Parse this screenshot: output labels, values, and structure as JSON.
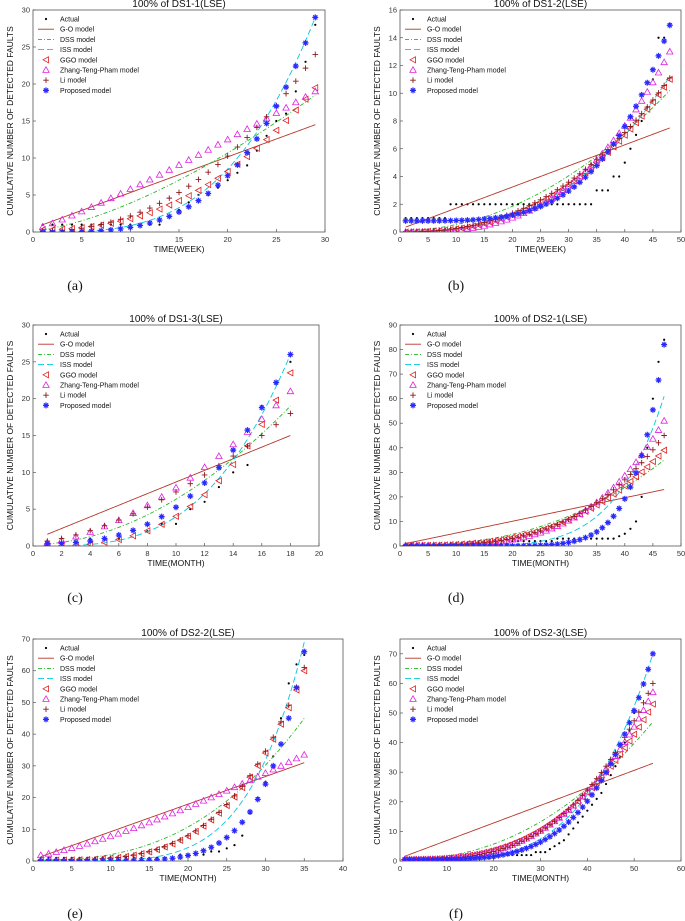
{
  "figure": {
    "colors": {
      "actual": "#000000",
      "go": "#b5372b",
      "dss": "#22b822",
      "iss": "#00c8dc",
      "ggo": "#e02020",
      "ztp": "#e020e0",
      "li": "#8b1a1a",
      "proposed": "#2a2aff"
    },
    "legend_labels": [
      "Actual",
      "G-O model",
      "DSS model",
      "ISS model",
      "GGO model",
      "Zhang-Teng-Pham model",
      "Li model",
      "Proposed model"
    ]
  },
  "chart_data": [
    {
      "type": "line",
      "id": "a",
      "caption": "(a)",
      "title": "100% of DS1-1(LSE)",
      "xlabel": "TIME(WEEK)",
      "ylabel": "CUMULATIVE NUMBER OF DETECTED FAULTS",
      "xlim": [
        0,
        30
      ],
      "ylim": [
        0,
        30
      ],
      "xticks": [
        0,
        5,
        10,
        15,
        20,
        25,
        30
      ],
      "yticks": [
        0,
        5,
        10,
        15,
        20,
        25,
        30
      ],
      "x_end": 29,
      "series": [
        {
          "name": "Actual",
          "kind": "actual",
          "values": [
            1,
            1,
            1,
            1,
            1,
            1,
            1,
            1,
            1,
            1,
            1,
            1,
            1,
            2,
            3,
            4,
            5,
            5,
            6,
            7,
            8,
            9,
            11,
            13,
            15,
            16,
            19,
            23,
            28
          ]
        },
        {
          "name": "G-O model",
          "kind": "go",
          "fn": "lin",
          "a": 0.5,
          "b": 14.5
        },
        {
          "name": "DSS model",
          "kind": "dss",
          "fn": "pow",
          "a": 0.2,
          "b": 18.5,
          "p": 1.5
        },
        {
          "name": "ISS model",
          "kind": "iss",
          "fn": "pow",
          "a": 0.0,
          "b": 29.0,
          "p": 3.3
        },
        {
          "name": "GGO model",
          "kind": "ggo",
          "fn": "pow",
          "a": 0.3,
          "b": 19.5,
          "p": 2.4
        },
        {
          "name": "Zhang-Teng-Pham model",
          "kind": "ztp",
          "fn": "pow",
          "a": 0.3,
          "b": 19.0,
          "p": 1.15
        },
        {
          "name": "Li model",
          "kind": "li",
          "fn": "pow",
          "a": 0.1,
          "b": 24.0,
          "p": 2.3
        },
        {
          "name": "Proposed model",
          "kind": "proposed",
          "fn": "pow",
          "a": 0.0,
          "b": 29.0,
          "p": 3.6
        }
      ]
    },
    {
      "type": "line",
      "id": "b",
      "caption": "(b)",
      "title": "100% of DS1-2(LSE)",
      "xlabel": "TIME(WEEK)",
      "ylabel": "CUMULATIVE NUMBER OF DETECTED FAULTS",
      "xlim": [
        0,
        50
      ],
      "ylim": [
        0,
        16
      ],
      "xticks": [
        0,
        5,
        10,
        15,
        20,
        25,
        30,
        35,
        40,
        45,
        50
      ],
      "yticks": [
        0,
        2,
        4,
        6,
        8,
        10,
        12,
        14,
        16
      ],
      "x_end": 48,
      "series": [
        {
          "name": "Actual",
          "kind": "actual",
          "values": [
            1,
            1,
            1,
            1,
            1,
            1,
            1,
            1,
            2,
            2,
            2,
            2,
            2,
            2,
            2,
            2,
            2,
            2,
            2,
            2,
            2,
            2,
            2,
            2,
            2,
            2,
            2,
            2,
            2,
            2,
            2,
            2,
            2,
            2,
            3,
            3,
            3,
            4,
            4,
            5,
            6,
            7,
            8,
            9,
            11,
            14,
            14,
            15
          ]
        },
        {
          "name": "G-O model",
          "kind": "go",
          "fn": "lin",
          "a": 0.2,
          "b": 7.5
        },
        {
          "name": "DSS model",
          "kind": "dss",
          "fn": "pow",
          "a": 0.1,
          "b": 10.2,
          "p": 2.0
        },
        {
          "name": "ISS model",
          "kind": "iss",
          "fn": "pow",
          "a": 0.0,
          "b": 11.2,
          "p": 2.6
        },
        {
          "name": "GGO model",
          "kind": "ggo",
          "fn": "pow",
          "a": 0.0,
          "b": 11.0,
          "p": 2.5
        },
        {
          "name": "Zhang-Teng-Pham model",
          "kind": "ztp",
          "fn": "pow",
          "a": 0.0,
          "b": 13.0,
          "p": 2.9
        },
        {
          "name": "Li model",
          "kind": "li",
          "fn": "pow",
          "a": 0.0,
          "b": 11.1,
          "p": 2.4
        },
        {
          "name": "Proposed model",
          "kind": "proposed",
          "fn": "pow",
          "a": 0.8,
          "b": 14.9,
          "p": 4.0
        }
      ]
    },
    {
      "type": "line",
      "id": "c",
      "caption": "(c)",
      "title": "100% of DS1-3(LSE)",
      "xlabel": "TIME(MONTH)",
      "ylabel": "CUMULATIVE NUMBER OF DETECTED FAULTS",
      "xlim": [
        0,
        20
      ],
      "ylim": [
        0,
        30
      ],
      "xticks": [
        0,
        2,
        4,
        6,
        8,
        10,
        12,
        14,
        16,
        18,
        20
      ],
      "yticks": [
        0,
        5,
        10,
        15,
        20,
        25,
        30
      ],
      "x_end": 18,
      "series": [
        {
          "name": "Actual",
          "kind": "actual",
          "values": [
            0,
            0,
            0,
            1,
            1,
            1,
            2,
            2,
            3,
            3,
            5,
            6,
            8,
            10,
            11,
            19,
            22,
            25
          ]
        },
        {
          "name": "G-O model",
          "kind": "go",
          "fn": "lin",
          "a": 0.8,
          "b": 15.0
        },
        {
          "name": "DSS model",
          "kind": "dss",
          "fn": "pow",
          "a": 0.2,
          "b": 19.0,
          "p": 1.9
        },
        {
          "name": "ISS model",
          "kind": "iss",
          "fn": "pow",
          "a": 0.0,
          "b": 26.0,
          "p": 3.2
        },
        {
          "name": "GGO model",
          "kind": "ggo",
          "fn": "pow",
          "a": 0.0,
          "b": 23.5,
          "p": 3.0
        },
        {
          "name": "Zhang-Teng-Pham model",
          "kind": "ztp",
          "fn": "pow",
          "a": 0.3,
          "b": 21.0,
          "p": 1.7
        },
        {
          "name": "Li model",
          "kind": "li",
          "fn": "pow",
          "a": 0.5,
          "b": 18.0,
          "p": 1.6
        },
        {
          "name": "Proposed model",
          "kind": "proposed",
          "fn": "pow",
          "a": 0.3,
          "b": 26.0,
          "p": 2.8
        }
      ]
    },
    {
      "type": "line",
      "id": "d",
      "caption": "(d)",
      "title": "100% of DS2-1(LSE)",
      "xlabel": "TIME(MONTH)",
      "ylabel": "CUMULATIVE NUMBER OF DETECTED FAULTS",
      "xlim": [
        0,
        50
      ],
      "ylim": [
        0,
        90
      ],
      "xticks": [
        0,
        5,
        10,
        15,
        20,
        25,
        30,
        35,
        40,
        45,
        50
      ],
      "yticks": [
        0,
        10,
        20,
        30,
        40,
        50,
        60,
        70,
        80,
        90
      ],
      "x_end": 47,
      "series": [
        {
          "name": "Actual",
          "kind": "actual",
          "values": [
            1,
            1,
            1,
            1,
            1,
            1,
            1,
            1,
            1,
            1,
            1,
            1,
            1,
            1,
            1,
            1,
            1,
            1,
            1,
            2,
            2,
            2,
            2,
            2,
            2,
            2,
            2,
            3,
            3,
            3,
            3,
            3,
            3,
            3,
            3,
            3,
            3,
            3,
            4,
            5,
            7,
            10,
            20,
            40,
            60,
            75,
            84
          ]
        },
        {
          "name": "G-O model",
          "kind": "go",
          "fn": "lin",
          "a": 0.5,
          "b": 23.0
        },
        {
          "name": "DSS model",
          "kind": "dss",
          "fn": "pow",
          "a": 0.3,
          "b": 35.0,
          "p": 2.4
        },
        {
          "name": "ISS model",
          "kind": "iss",
          "fn": "pow",
          "a": 0.0,
          "b": 61.0,
          "p": 5.5
        },
        {
          "name": "GGO model",
          "kind": "ggo",
          "fn": "pow",
          "a": 0.2,
          "b": 39.0,
          "p": 2.9
        },
        {
          "name": "Zhang-Teng-Pham model",
          "kind": "ztp",
          "fn": "pow",
          "a": 0.2,
          "b": 51.0,
          "p": 3.6
        },
        {
          "name": "Li model",
          "kind": "li",
          "fn": "pow",
          "a": 0.2,
          "b": 45.0,
          "p": 3.2
        },
        {
          "name": "Proposed model",
          "kind": "proposed",
          "fn": "pow",
          "a": 0.0,
          "b": 82.0,
          "p": 9.0
        }
      ]
    },
    {
      "type": "line",
      "id": "e",
      "caption": "(e)",
      "title": "100% of DS2-2(LSE)",
      "xlabel": "TIME(MONTH)",
      "ylabel": "CUMULATIVE NUMBER OF DETECTED FAULTS",
      "xlim": [
        0,
        40
      ],
      "ylim": [
        0,
        70
      ],
      "xticks": [
        0,
        5,
        10,
        15,
        20,
        25,
        30,
        35,
        40
      ],
      "yticks": [
        0,
        10,
        20,
        30,
        40,
        50,
        60,
        70
      ],
      "x_end": 35,
      "series": [
        {
          "name": "Actual",
          "kind": "actual",
          "values": [
            1,
            1,
            1,
            1,
            1,
            1,
            1,
            1,
            1,
            1,
            1,
            1,
            1,
            1,
            1,
            1,
            1,
            1,
            2,
            2,
            2,
            2,
            3,
            3,
            4,
            5,
            8,
            15,
            20,
            25,
            33,
            45,
            56,
            62,
            65
          ]
        },
        {
          "name": "G-O model",
          "kind": "go",
          "fn": "lin",
          "a": 0.5,
          "b": 31.0
        },
        {
          "name": "DSS model",
          "kind": "dss",
          "fn": "pow",
          "a": 0.3,
          "b": 45.0,
          "p": 2.6
        },
        {
          "name": "ISS model",
          "kind": "iss",
          "fn": "pow",
          "a": 0.0,
          "b": 69.0,
          "p": 5.0
        },
        {
          "name": "GGO model",
          "kind": "ggo",
          "fn": "pow",
          "a": 0.3,
          "b": 60.0,
          "p": 3.7
        },
        {
          "name": "Zhang-Teng-Pham model",
          "kind": "ztp",
          "fn": "pow",
          "a": 1.5,
          "b": 33.5,
          "p": 1.3
        },
        {
          "name": "Li model",
          "kind": "li",
          "fn": "pow",
          "a": 0.3,
          "b": 61.0,
          "p": 3.7
        },
        {
          "name": "Proposed model",
          "kind": "proposed",
          "fn": "pow",
          "a": 0.0,
          "b": 66.0,
          "p": 6.5
        }
      ]
    },
    {
      "type": "line",
      "id": "f",
      "caption": "(f)",
      "title": "100% of DS2-3(LSE)",
      "xlabel": "TIME(MONTH)",
      "ylabel": "CUMULATIVE NUMBER OF DETECTED FAULTS",
      "xlim": [
        0,
        60
      ],
      "ylim": [
        0,
        75
      ],
      "xticks": [
        0,
        10,
        20,
        30,
        40,
        50,
        60
      ],
      "yticks": [
        0,
        10,
        20,
        30,
        40,
        50,
        60,
        70
      ],
      "x_end": 54,
      "series": [
        {
          "name": "Actual",
          "kind": "actual",
          "values": [
            1,
            1,
            1,
            1,
            1,
            1,
            1,
            1,
            1,
            1,
            1,
            1,
            1,
            1,
            1,
            1,
            1,
            1,
            1,
            1,
            2,
            2,
            2,
            2,
            2,
            2,
            2,
            2,
            3,
            3,
            3,
            4,
            5,
            6,
            7,
            9,
            11,
            13,
            15,
            17,
            19,
            21,
            23,
            26,
            29,
            32,
            35,
            40,
            44,
            50,
            55,
            60,
            65,
            70
          ]
        },
        {
          "name": "G-O model",
          "kind": "go",
          "fn": "lin",
          "a": 1.0,
          "b": 33.0
        },
        {
          "name": "DSS model",
          "kind": "dss",
          "fn": "pow",
          "a": 0.5,
          "b": 47.0,
          "p": 2.2
        },
        {
          "name": "ISS model",
          "kind": "iss",
          "fn": "pow",
          "a": 0.0,
          "b": 70.0,
          "p": 3.8
        },
        {
          "name": "GGO model",
          "kind": "ggo",
          "fn": "pow",
          "a": 0.5,
          "b": 53.0,
          "p": 2.8
        },
        {
          "name": "Zhang-Teng-Pham model",
          "kind": "ztp",
          "fn": "pow",
          "a": 0.5,
          "b": 57.0,
          "p": 3.0
        },
        {
          "name": "Li model",
          "kind": "li",
          "fn": "pow",
          "a": 0.5,
          "b": 60.0,
          "p": 3.1
        },
        {
          "name": "Proposed model",
          "kind": "proposed",
          "fn": "pow",
          "a": 0.5,
          "b": 70.0,
          "p": 4.2
        }
      ]
    }
  ]
}
